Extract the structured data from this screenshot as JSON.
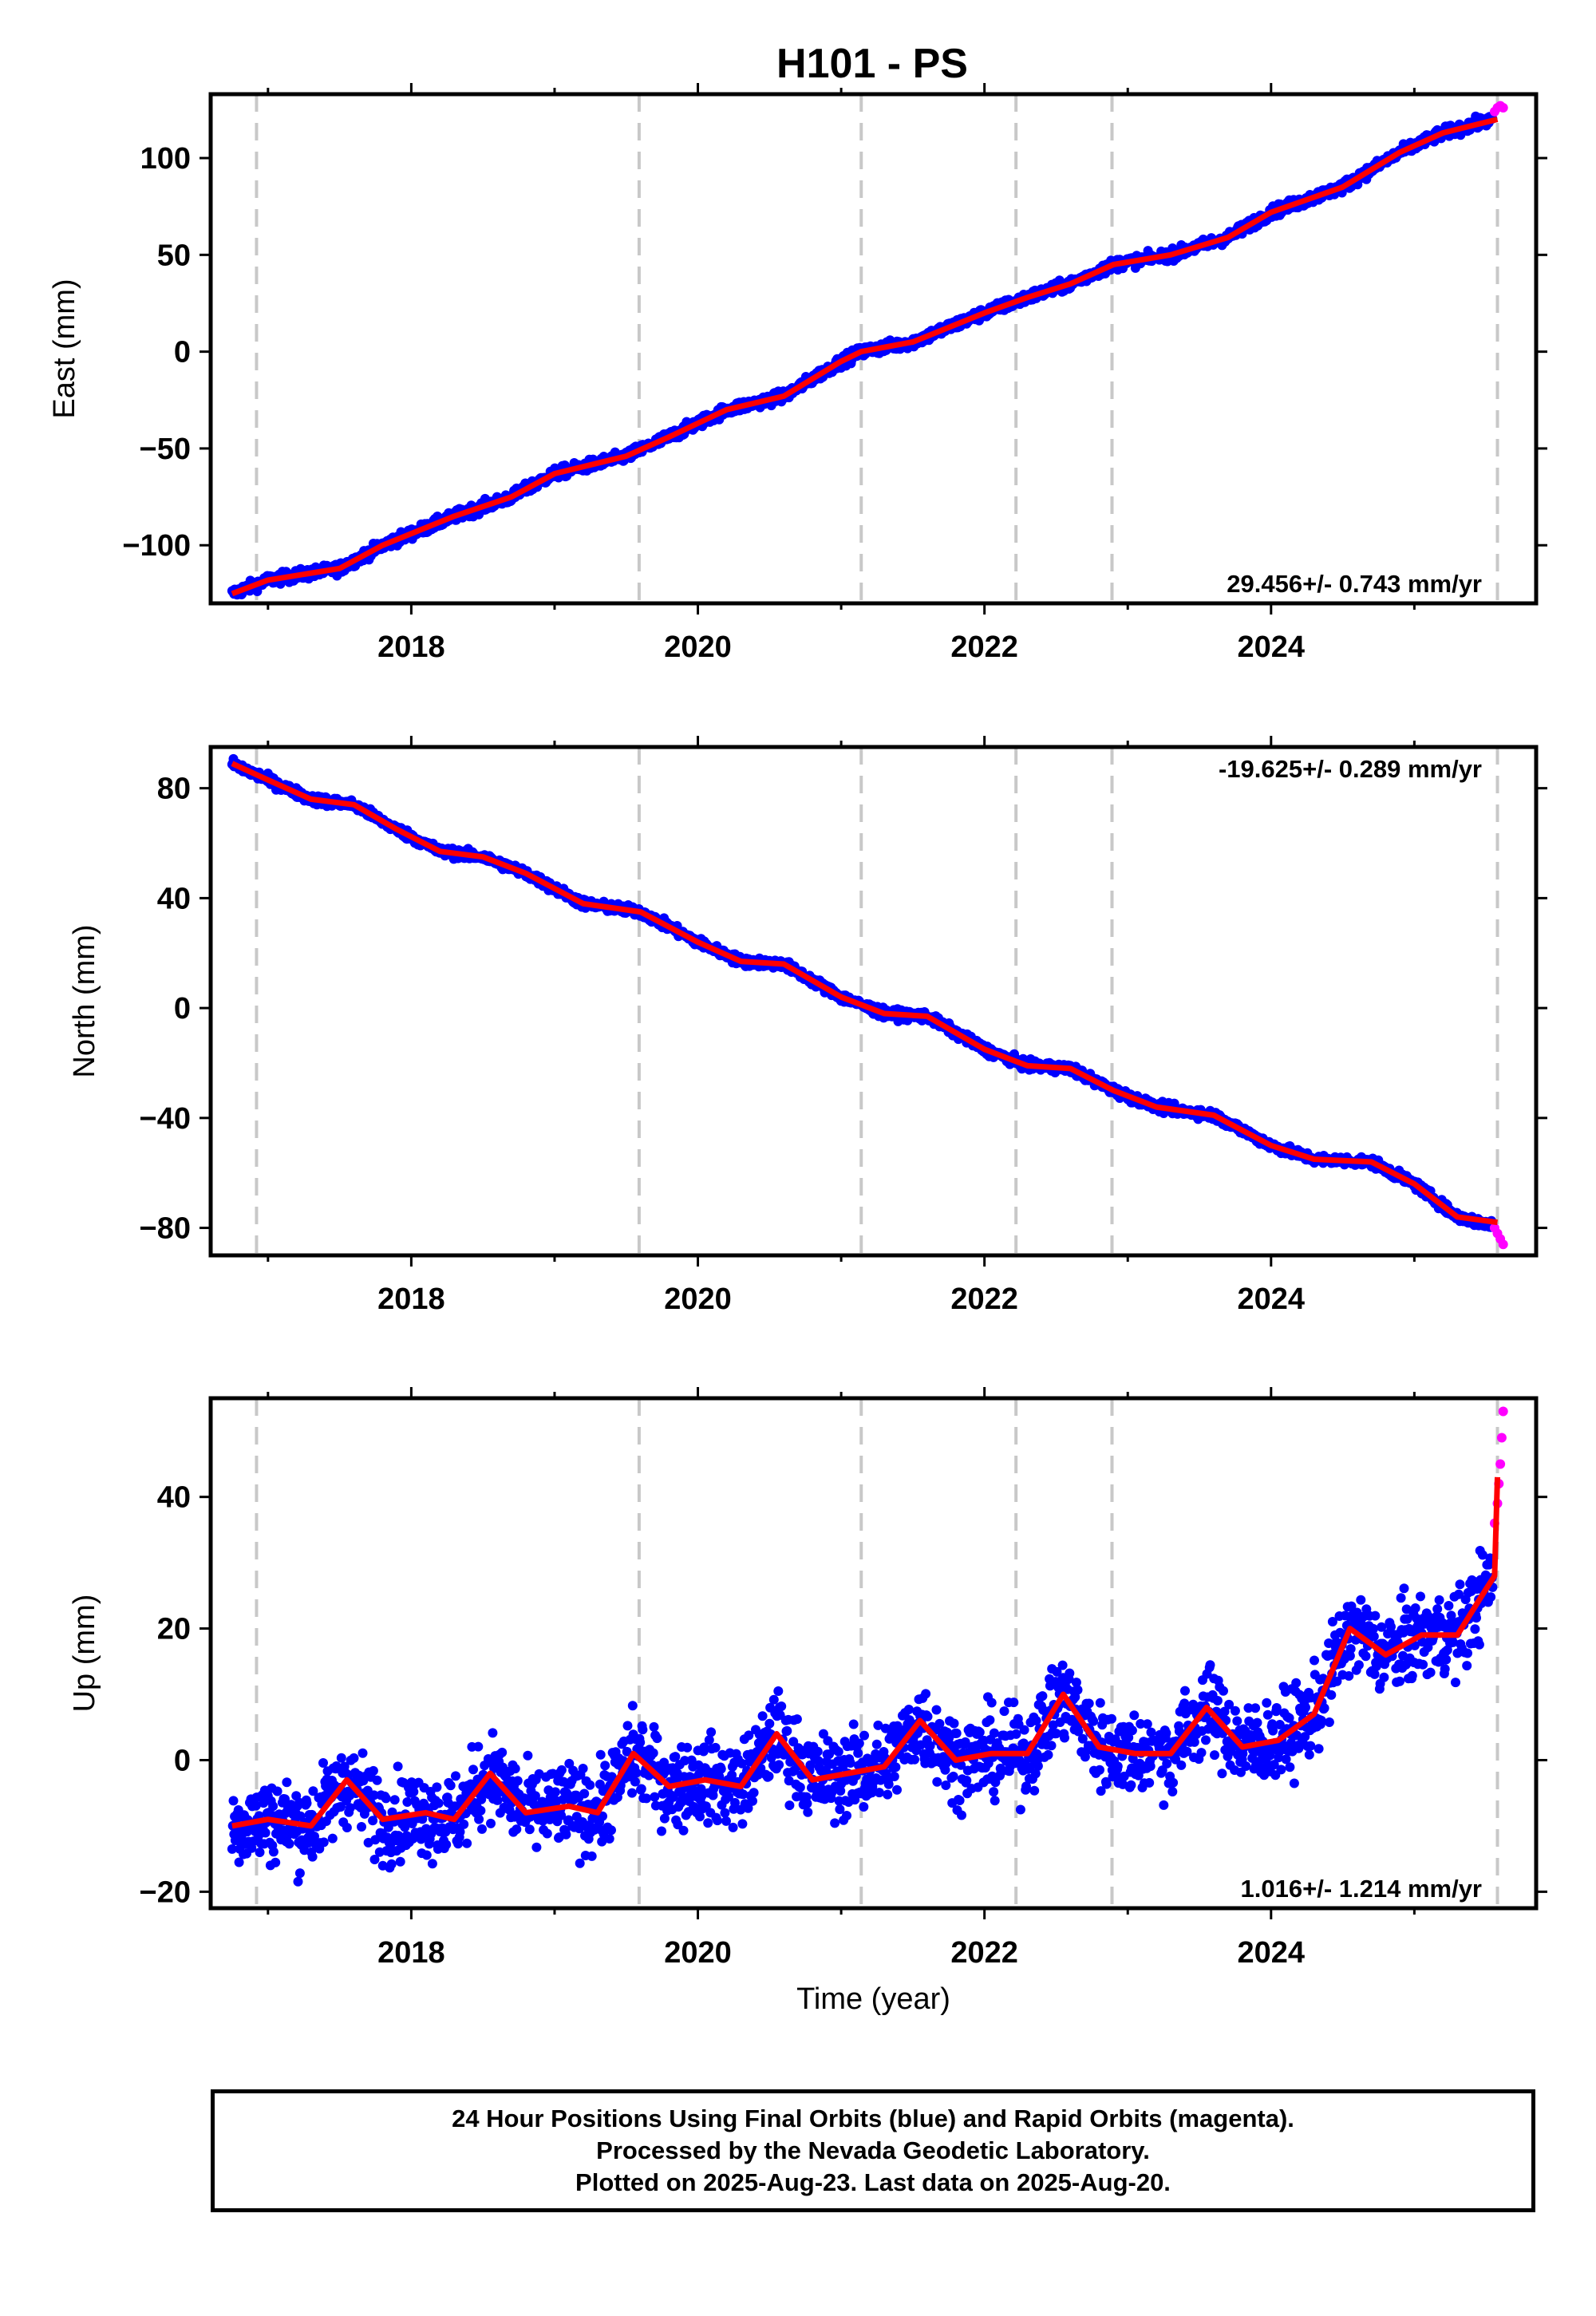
{
  "title": "H101 - PS",
  "colors": {
    "final_orbits": "#0000ff",
    "rapid_orbits": "#ff00ff",
    "model": "#ff0000",
    "event_lines": "#c8c8c8",
    "frame": "#000000"
  },
  "caption": {
    "line1": "24 Hour Positions Using Final Orbits (blue) and Rapid Orbits (magenta).",
    "line2": "Processed by the Nevada Geodetic Laboratory.",
    "line3": "Plotted on 2025-Aug-23. Last data on 2025-Aug-20."
  },
  "chart_data": [
    {
      "type": "scatter",
      "component": "East",
      "ylabel": "East (mm)",
      "xlabel": "",
      "xlim": [
        2016.6,
        2025.85
      ],
      "ylim": [
        -130,
        133
      ],
      "xticks": [
        2018,
        2020,
        2022,
        2024
      ],
      "xtick_labels": [
        "2018",
        "2020",
        "2022",
        "2024"
      ],
      "yticks": [
        -100,
        -50,
        0,
        50,
        100
      ],
      "ytick_labels": [
        "−100",
        "−50",
        "0",
        "50",
        "100"
      ],
      "event_lines_x": [
        2016.92,
        2019.59,
        2021.14,
        2022.22,
        2022.89,
        2025.58
      ],
      "rate_label": "29.456+/- 0.743 mm/yr",
      "rate_position": "bottom-right",
      "grid": false,
      "series": [
        {
          "name": "Final Orbits",
          "marker": "dot",
          "x_range": [
            2016.75,
            2025.55
          ],
          "scatter_mm": 2.0,
          "trend_x": [
            2016.75,
            2017.0,
            2017.5,
            2017.8,
            2018.3,
            2018.7,
            2019.0,
            2019.5,
            2019.8,
            2020.2,
            2020.6,
            2021.0,
            2021.14,
            2021.5,
            2022.0,
            2022.3,
            2022.6,
            2022.9,
            2023.3,
            2023.7,
            2024.0,
            2024.5,
            2024.9,
            2025.2,
            2025.55
          ],
          "trend_y": [
            -125,
            -118,
            -112,
            -100,
            -85,
            -75,
            -63,
            -54,
            -44,
            -30,
            -23,
            -5,
            0,
            5,
            20,
            28,
            35,
            45,
            50,
            59,
            72,
            85,
            103,
            113,
            120
          ]
        },
        {
          "name": "Rapid Orbits",
          "marker": "dot",
          "x": [
            2025.56,
            2025.58,
            2025.6,
            2025.62
          ],
          "y": [
            124,
            126,
            127,
            126
          ]
        }
      ],
      "model": {
        "x": [
          2016.75,
          2017.0,
          2017.5,
          2017.8,
          2018.3,
          2018.7,
          2019.0,
          2019.5,
          2019.8,
          2020.2,
          2020.6,
          2021.0,
          2021.14,
          2021.5,
          2022.0,
          2022.3,
          2022.6,
          2022.9,
          2023.3,
          2023.7,
          2024.0,
          2024.5,
          2024.9,
          2025.2,
          2025.58
        ],
        "y": [
          -125,
          -118,
          -112,
          -100,
          -85,
          -75,
          -63,
          -54,
          -44,
          -30,
          -23,
          -5,
          0,
          5,
          20,
          28,
          35,
          45,
          50,
          59,
          72,
          85,
          103,
          113,
          120
        ]
      }
    },
    {
      "type": "scatter",
      "component": "North",
      "ylabel": "North (mm)",
      "xlabel": "",
      "xlim": [
        2016.6,
        2025.85
      ],
      "ylim": [
        -90,
        95
      ],
      "xticks": [
        2018,
        2020,
        2022,
        2024
      ],
      "xtick_labels": [
        "2018",
        "2020",
        "2022",
        "2024"
      ],
      "yticks": [
        -80,
        -40,
        0,
        40,
        80
      ],
      "ytick_labels": [
        "−80",
        "−40",
        "0",
        "40",
        "80"
      ],
      "event_lines_x": [
        2016.92,
        2019.59,
        2021.14,
        2022.22,
        2022.89,
        2025.58
      ],
      "rate_label": "-19.625+/- 0.289 mm/yr",
      "rate_position": "top-right",
      "grid": false,
      "series": [
        {
          "name": "Final Orbits",
          "marker": "dot",
          "x_range": [
            2016.75,
            2025.55
          ],
          "scatter_mm": 1.2,
          "trend_x": [
            2016.75,
            2017.0,
            2017.3,
            2017.6,
            2017.9,
            2018.2,
            2018.5,
            2018.8,
            2019.2,
            2019.6,
            2020.0,
            2020.3,
            2020.6,
            2021.0,
            2021.3,
            2021.6,
            2022.0,
            2022.3,
            2022.6,
            2022.9,
            2023.2,
            2023.6,
            2024.0,
            2024.3,
            2024.7,
            2025.0,
            2025.3,
            2025.55
          ],
          "trend_y": [
            89,
            83,
            76,
            74,
            65,
            57,
            55,
            49,
            38,
            35,
            24,
            17,
            16,
            4,
            -2,
            -3,
            -15,
            -21,
            -22,
            -30,
            -36,
            -39,
            -50,
            -55,
            -56,
            -64,
            -76,
            -79
          ]
        },
        {
          "name": "Rapid Orbits",
          "marker": "dot",
          "x": [
            2025.56,
            2025.58,
            2025.6,
            2025.62
          ],
          "y": [
            -80,
            -82,
            -84,
            -86
          ]
        }
      ],
      "model": {
        "x": [
          2016.75,
          2017.0,
          2017.3,
          2017.6,
          2017.9,
          2018.2,
          2018.5,
          2018.8,
          2019.2,
          2019.6,
          2020.0,
          2020.3,
          2020.6,
          2021.0,
          2021.3,
          2021.6,
          2022.0,
          2022.3,
          2022.6,
          2022.9,
          2023.2,
          2023.6,
          2024.0,
          2024.3,
          2024.7,
          2025.0,
          2025.3,
          2025.58
        ],
        "y": [
          89,
          83,
          76,
          74,
          65,
          57,
          55,
          49,
          38,
          35,
          24,
          17,
          16,
          4,
          -2,
          -3,
          -15,
          -21,
          -22,
          -30,
          -36,
          -39,
          -50,
          -55,
          -56,
          -64,
          -76,
          -78
        ]
      }
    },
    {
      "type": "scatter",
      "component": "Up",
      "ylabel": "Up (mm)",
      "xlabel": "Time (year)",
      "xlim": [
        2016.6,
        2025.85
      ],
      "ylim": [
        -22.5,
        55
      ],
      "xticks": [
        2018,
        2020,
        2022,
        2024
      ],
      "xtick_labels": [
        "2018",
        "2020",
        "2022",
        "2024"
      ],
      "yticks": [
        -20,
        0,
        20,
        40
      ],
      "ytick_labels": [
        "−20",
        "0",
        "20",
        "40"
      ],
      "event_lines_x": [
        2016.92,
        2019.59,
        2021.14,
        2022.22,
        2022.89,
        2025.58
      ],
      "rate_label": "1.016+/- 1.214 mm/yr",
      "rate_position": "bottom-right",
      "grid": false,
      "series": [
        {
          "name": "Final Orbits",
          "marker": "dot",
          "x_range": [
            2016.75,
            2025.55
          ],
          "scatter_mm": 4.5,
          "trend_x": [
            2016.75,
            2017.0,
            2017.3,
            2017.55,
            2017.8,
            2018.1,
            2018.3,
            2018.55,
            2018.8,
            2019.1,
            2019.3,
            2019.55,
            2019.8,
            2020.05,
            2020.3,
            2020.55,
            2020.8,
            2021.05,
            2021.3,
            2021.55,
            2021.8,
            2022.05,
            2022.3,
            2022.55,
            2022.8,
            2023.05,
            2023.3,
            2023.55,
            2023.8,
            2024.05,
            2024.3,
            2024.55,
            2024.8,
            2025.05,
            2025.3,
            2025.55
          ],
          "trend_y": [
            -10,
            -9,
            -10,
            -3,
            -9,
            -8,
            -9,
            -2,
            -8,
            -7,
            -8,
            1,
            -4,
            -3,
            -4,
            4,
            -3,
            -2,
            -1,
            6,
            0,
            1,
            1,
            10,
            2,
            1,
            1,
            8,
            2,
            3,
            7,
            20,
            16,
            19,
            19,
            28
          ]
        },
        {
          "name": "Rapid Orbits",
          "marker": "dot",
          "x": [
            2025.56,
            2025.58,
            2025.59,
            2025.6,
            2025.61,
            2025.62
          ],
          "y": [
            36,
            39,
            42,
            45,
            49,
            53
          ]
        }
      ],
      "model": {
        "x": [
          2016.75,
          2017.0,
          2017.3,
          2017.55,
          2017.8,
          2018.1,
          2018.3,
          2018.55,
          2018.8,
          2019.1,
          2019.3,
          2019.55,
          2019.8,
          2020.05,
          2020.3,
          2020.55,
          2020.8,
          2021.05,
          2021.3,
          2021.55,
          2021.8,
          2022.05,
          2022.3,
          2022.55,
          2022.8,
          2023.05,
          2023.3,
          2023.55,
          2023.8,
          2024.05,
          2024.3,
          2024.55,
          2024.8,
          2025.05,
          2025.3,
          2025.5,
          2025.56,
          2025.58
        ],
        "y": [
          -10,
          -9,
          -10,
          -3,
          -9,
          -8,
          -9,
          -2,
          -8,
          -7,
          -8,
          1,
          -4,
          -3,
          -4,
          4,
          -3,
          -2,
          -1,
          6,
          0,
          1,
          1,
          10,
          2,
          1,
          1,
          8,
          2,
          3,
          7,
          20,
          16,
          19,
          19,
          26,
          28,
          43
        ]
      }
    }
  ]
}
